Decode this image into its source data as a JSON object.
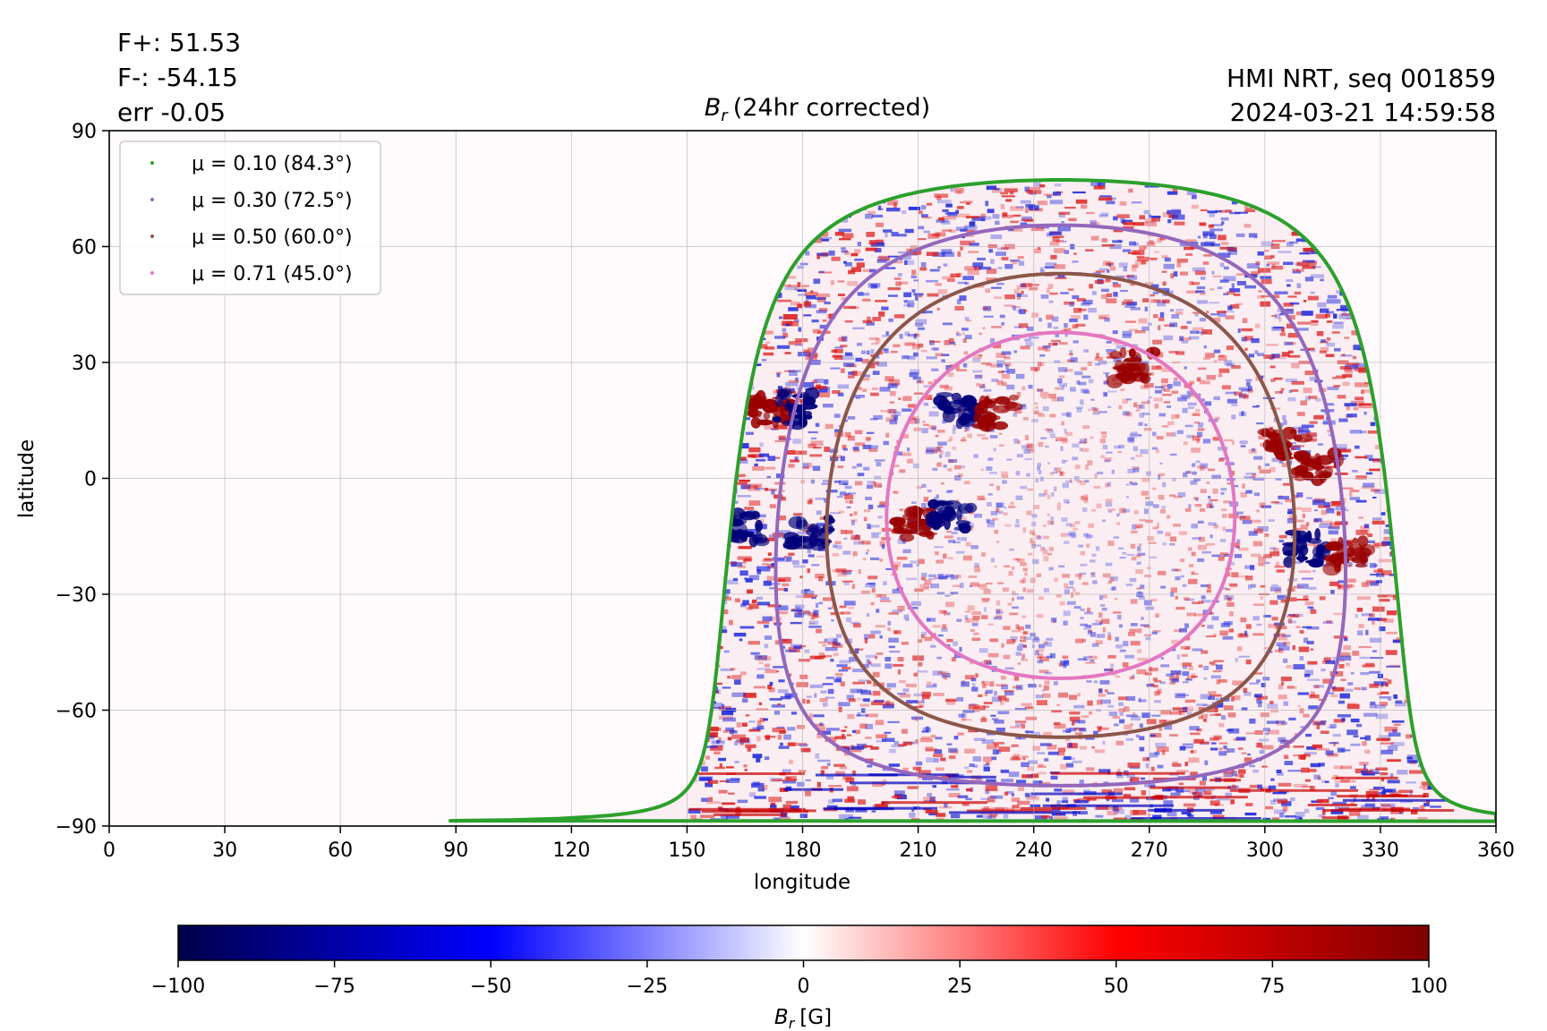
{
  "chart_data": {
    "type": "heatmap",
    "title": "(24hr corrected)",
    "title_symbol": "B",
    "title_symbol_sub": "r",
    "stats": [
      "F+: 51.53",
      "F-: -54.15",
      "err -0.05"
    ],
    "source": "HMI NRT, seq 001859",
    "timestamp": "2024-03-21 14:59:58",
    "xlabel": "longitude",
    "ylabel": "latitude",
    "xlim": [
      0,
      360
    ],
    "ylim": [
      -90,
      90
    ],
    "xticks": [
      0,
      30,
      60,
      90,
      120,
      150,
      180,
      210,
      240,
      270,
      300,
      330,
      360
    ],
    "yticks": [
      -90,
      -60,
      -30,
      0,
      30,
      60,
      90
    ],
    "grid": true,
    "legend_position": "top-left",
    "legend": [
      {
        "label": "μ = 0.10 (84.3°)",
        "color": "#2ca02c"
      },
      {
        "label": "μ = 0.30 (72.5°)",
        "color": "#9467bd"
      },
      {
        "label": "μ = 0.50 (60.0°)",
        "color": "#8c564b"
      },
      {
        "label": "μ = 0.71 (45.0°)",
        "color": "#e377c2"
      }
    ],
    "disk_center": {
      "lon": 247,
      "lat": -7
    },
    "mu_contours": [
      {
        "mu": 0.1,
        "color": "#2ca02c"
      },
      {
        "mu": 0.3,
        "color": "#9467bd"
      },
      {
        "mu": 0.5,
        "color": "#8c564b"
      },
      {
        "mu": 0.71,
        "color": "#e377c2"
      }
    ],
    "active_regions": [
      {
        "lon": 220,
        "lat": 18,
        "polarity": "negative"
      },
      {
        "lon": 230,
        "lat": 17,
        "polarity": "positive"
      },
      {
        "lon": 172,
        "lat": 18,
        "polarity": "positive"
      },
      {
        "lon": 178,
        "lat": 18,
        "polarity": "negative"
      },
      {
        "lon": 209,
        "lat": -12,
        "polarity": "positive"
      },
      {
        "lon": 219,
        "lat": -10,
        "polarity": "negative"
      },
      {
        "lon": 182,
        "lat": -14,
        "polarity": "negative"
      },
      {
        "lon": 165,
        "lat": -13,
        "polarity": "negative"
      },
      {
        "lon": 311,
        "lat": -18,
        "polarity": "negative"
      },
      {
        "lon": 322,
        "lat": -20,
        "polarity": "positive"
      },
      {
        "lon": 305,
        "lat": 9,
        "polarity": "positive"
      },
      {
        "lon": 314,
        "lat": 3,
        "polarity": "positive"
      },
      {
        "lon": 266,
        "lat": 29,
        "polarity": "positive"
      }
    ],
    "colorbar": {
      "label_symbol": "B",
      "label_symbol_sub": "r",
      "label_unit": "[G]",
      "range": [
        -100,
        100
      ],
      "ticks": [
        -100,
        -75,
        -50,
        -25,
        0,
        25,
        50,
        75,
        100
      ],
      "tick_labels": [
        "−100",
        "−75",
        "−50",
        "−25",
        "0",
        "25",
        "50",
        "75",
        "100"
      ],
      "colormap": "seismic"
    }
  }
}
